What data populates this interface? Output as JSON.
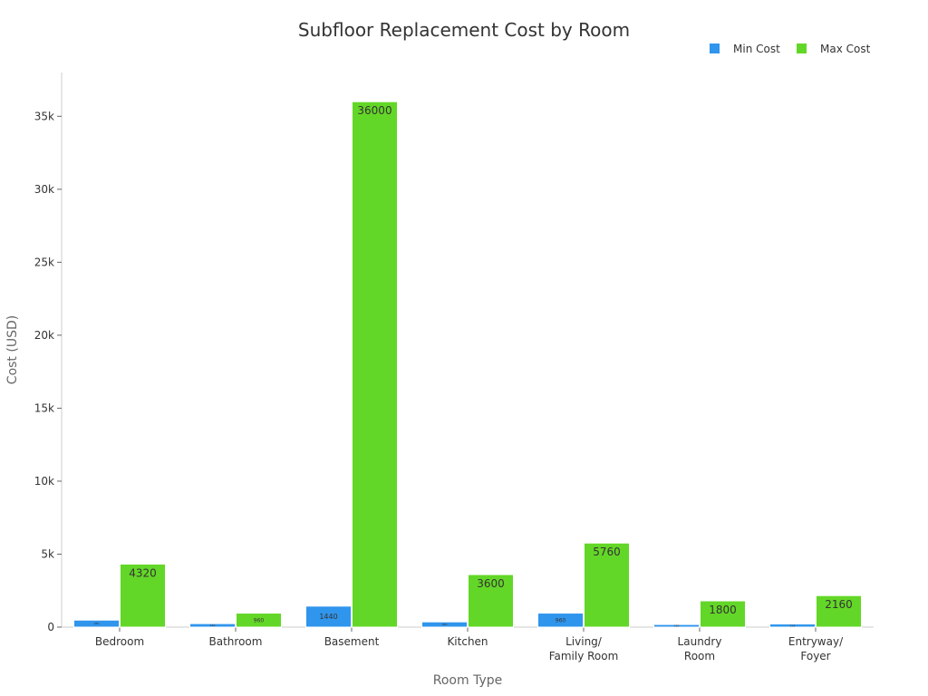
{
  "chart_data": {
    "type": "bar",
    "title": "Subfloor Replacement Cost by Room",
    "xlabel": "Room Type",
    "ylabel": "Cost (USD)",
    "categories": [
      [
        "Bedroom"
      ],
      [
        "Bathroom"
      ],
      [
        "Basement"
      ],
      [
        "Kitchen"
      ],
      [
        "Living/",
        "Family Room"
      ],
      [
        "Laundry",
        "Room"
      ],
      [
        "Entryway/",
        "Foyer"
      ]
    ],
    "series": [
      {
        "name": "Min Cost",
        "color": "#3095ec",
        "values": [
          480,
          240,
          1440,
          360,
          960,
          180,
          216
        ]
      },
      {
        "name": "Max Cost",
        "color": "#63d727",
        "values": [
          4320,
          960,
          36000,
          3600,
          5760,
          1800,
          2160
        ]
      }
    ],
    "data_labels": [
      [
        "480",
        "240",
        "1440",
        "360",
        "960",
        "180",
        "216"
      ],
      [
        "4320",
        "960",
        "36000",
        "3600",
        "5760",
        "1800",
        "2160"
      ]
    ],
    "ylim": [
      0,
      38000
    ],
    "yticks": [
      0,
      5000,
      10000,
      15000,
      20000,
      25000,
      30000,
      35000
    ],
    "ytick_labels": [
      "0",
      "5k",
      "10k",
      "15k",
      "20k",
      "25k",
      "30k",
      "35k"
    ],
    "grid": false,
    "legend": "top-right"
  }
}
